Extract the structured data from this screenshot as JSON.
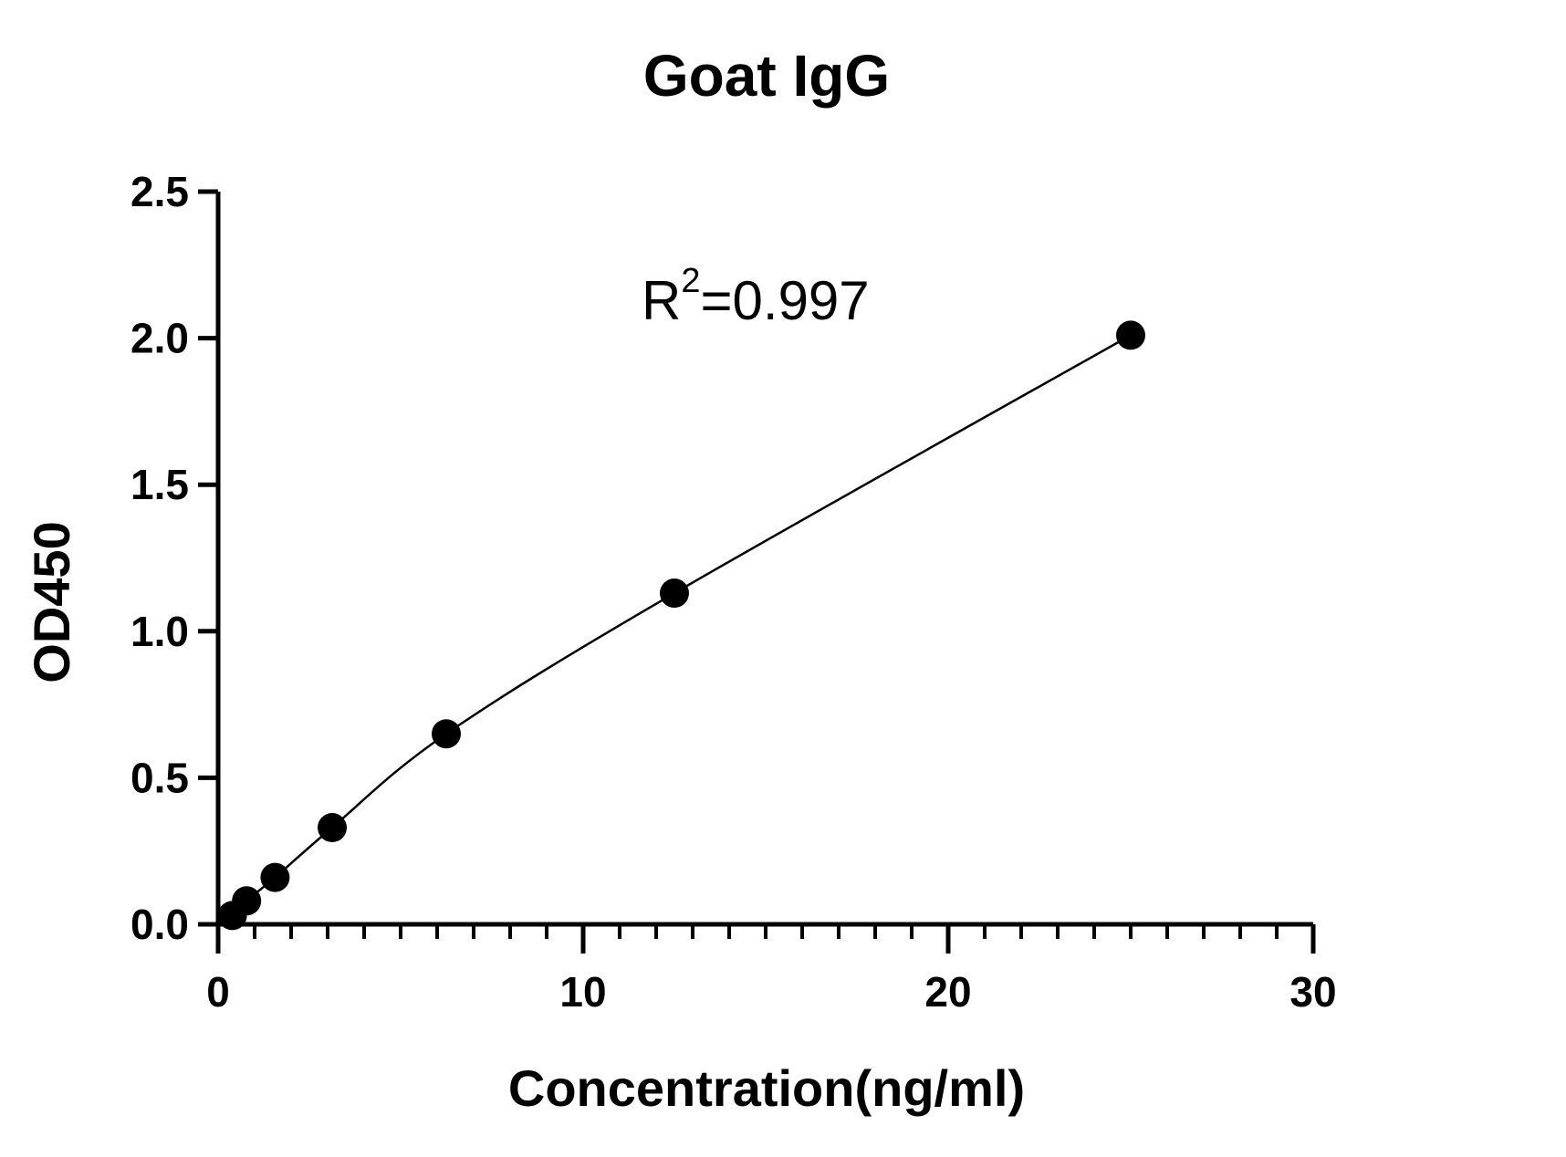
{
  "chart_data": {
    "type": "scatter",
    "title": "Goat IgG",
    "xlabel": "Concentration(ng/ml)",
    "ylabel": "OD450",
    "xlim": [
      0,
      30
    ],
    "ylim": [
      0,
      2.5
    ],
    "x_ticks": [
      "0",
      "10",
      "20",
      "30"
    ],
    "y_ticks": [
      "0.0",
      "0.5",
      "1.0",
      "1.5",
      "2.0",
      "2.5"
    ],
    "x_tick_values": [
      0,
      10,
      20,
      30
    ],
    "y_tick_values": [
      0,
      0.5,
      1.0,
      1.5,
      2.0,
      2.5
    ],
    "x_minor_step": 1,
    "grid": false,
    "annotation": {
      "prefix": "R",
      "superscript": "2",
      "suffix": "=0.997"
    },
    "series": [
      {
        "x": [
          0.39,
          0.78,
          1.56,
          3.125,
          6.25,
          12.5,
          25
        ],
        "y": [
          0.03,
          0.08,
          0.16,
          0.33,
          0.65,
          1.13,
          2.01
        ]
      }
    ],
    "fit_curve": true,
    "colors": {
      "marker": "#000000",
      "line": "#000000",
      "axis": "#000000"
    }
  }
}
